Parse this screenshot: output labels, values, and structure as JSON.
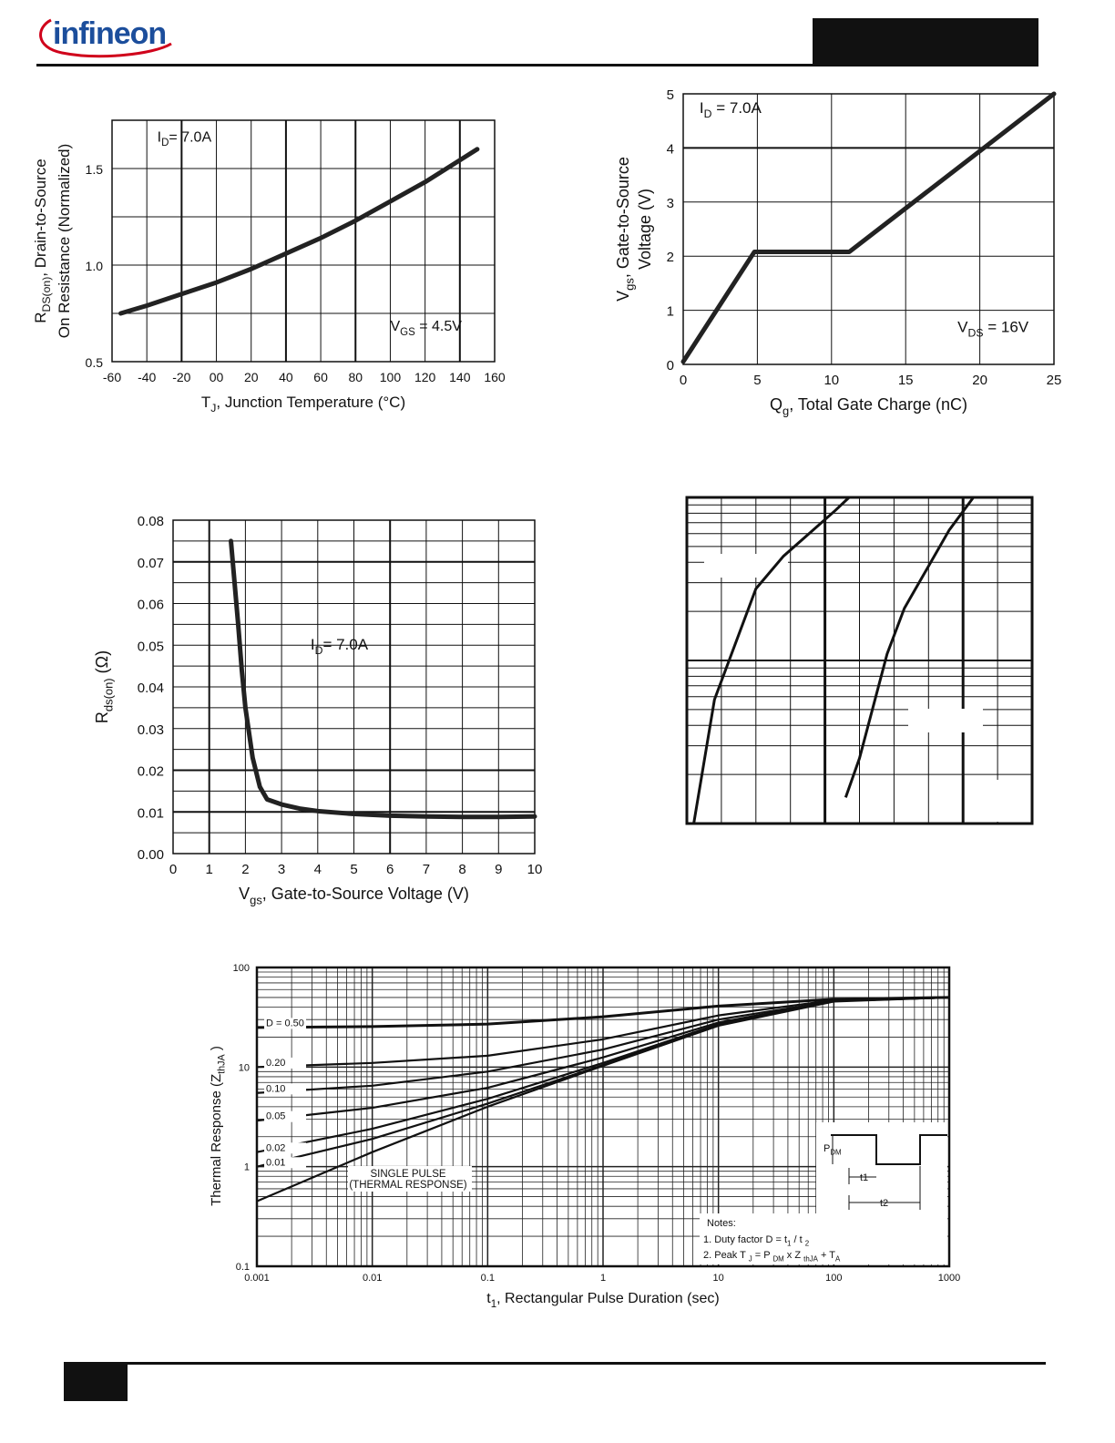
{
  "header": {
    "logo_text": "infineon",
    "brand_color": "#1c4e9c"
  },
  "chart_data": [
    {
      "id": "rds_vs_tj",
      "type": "line",
      "title": "",
      "xlabel_parts": [
        "T",
        "J",
        ", Junction Temperature (°C)"
      ],
      "ylabel_line1_parts": [
        "R",
        "DS(on)",
        ", Drain-to-Source"
      ],
      "ylabel_line2": "On Resistance (Normalized)",
      "xlim": [
        -60,
        160
      ],
      "ylim": [
        0.5,
        1.75
      ],
      "x_ticks": [
        "-60",
        "-40",
        "-20",
        "00",
        "20",
        "40",
        "60",
        "80",
        "100",
        "120",
        "140",
        "160"
      ],
      "y_ticks": [
        "0.5",
        "1.0",
        "1.5"
      ],
      "annotations": [
        {
          "parts": [
            "I",
            "D",
            "= 7.0A"
          ],
          "x": -34,
          "y": 1.64
        },
        {
          "parts": [
            "V",
            "GS",
            " = 4.5V"
          ],
          "x": 100,
          "y": 0.66
        }
      ],
      "grid": true,
      "series": [
        {
          "x": [
            -55,
            -40,
            -20,
            0,
            20,
            40,
            60,
            80,
            100,
            120,
            150
          ],
          "y": [
            0.75,
            0.79,
            0.85,
            0.91,
            0.98,
            1.06,
            1.14,
            1.23,
            1.33,
            1.43,
            1.6
          ]
        }
      ]
    },
    {
      "id": "vgs_vs_qg",
      "type": "line",
      "title": "",
      "xlabel_parts": [
        "Q",
        "g",
        ", Total Gate Charge (nC)"
      ],
      "ylabel_line1_parts": [
        "V",
        "gs",
        ", Gate-to-Source"
      ],
      "ylabel_line2": "Voltage (V)",
      "xlim": [
        0,
        25
      ],
      "ylim": [
        0,
        5
      ],
      "x_ticks": [
        "0",
        "5",
        "10",
        "15",
        "20",
        "25"
      ],
      "y_ticks": [
        "0",
        "1",
        "2",
        "3",
        "4",
        "5"
      ],
      "annotations": [
        {
          "parts": [
            "I",
            "D",
            " = 7.0A"
          ],
          "x": 1.1,
          "y": 4.65
        },
        {
          "parts": [
            "V",
            "DS",
            " = 16V"
          ],
          "x": 18.5,
          "y": 0.6
        }
      ],
      "grid": true,
      "series": [
        {
          "x": [
            0,
            4.8,
            11.2,
            25
          ],
          "y": [
            0.05,
            2.08,
            2.08,
            5.0
          ]
        }
      ]
    },
    {
      "id": "rds_vs_vgs",
      "type": "line",
      "title": "",
      "xlabel_parts": [
        "V",
        "gs",
        ", Gate-to-Source Voltage (V)"
      ],
      "ylabel_line1_parts": [
        "R",
        "ds(on)",
        "  (Ω)"
      ],
      "ylabel_line2": "",
      "xlim": [
        0,
        10
      ],
      "ylim": [
        0,
        0.08
      ],
      "x_ticks": [
        "0",
        "1",
        "2",
        "3",
        "4",
        "5",
        "6",
        "7",
        "8",
        "9",
        "10"
      ],
      "y_ticks": [
        "0.00",
        "0.01",
        "0.02",
        "0.03",
        "0.04",
        "0.05",
        "0.06",
        "0.07",
        "0.08"
      ],
      "annotations": [
        {
          "parts": [
            "I",
            "D",
            "= 7.0A"
          ],
          "x": 3.8,
          "y": 0.049
        }
      ],
      "grid": true,
      "series": [
        {
          "x": [
            1.6,
            1.7,
            1.8,
            1.9,
            2.0,
            2.2,
            2.4,
            2.6,
            3.0,
            3.5,
            4.0,
            5.0,
            6.0,
            7.0,
            8.0,
            9.0,
            10.0
          ],
          "y": [
            0.075,
            0.065,
            0.055,
            0.044,
            0.035,
            0.023,
            0.016,
            0.013,
            0.0118,
            0.0108,
            0.0102,
            0.0095,
            0.0091,
            0.0089,
            0.0088,
            0.0088,
            0.0089
          ]
        }
      ]
    },
    {
      "id": "unlabeled_log_plot",
      "type": "line",
      "title": "",
      "grid": true,
      "series": [
        {
          "x": [
            0.02,
            0.08,
            0.2,
            0.28,
            0.43,
            0.47
          ],
          "y": [
            0.0,
            0.38,
            0.72,
            0.82,
            0.96,
            1.0
          ]
        },
        {
          "x": [
            0.46,
            0.5,
            0.58,
            0.63,
            0.76,
            0.83
          ],
          "y": [
            0.08,
            0.2,
            0.52,
            0.66,
            0.9,
            1.0
          ]
        }
      ]
    },
    {
      "id": "thermal_response",
      "type": "line",
      "title": "",
      "xlabel_parts": [
        "t",
        "1",
        ", Rectangular Pulse Duration (sec)"
      ],
      "ylabel_parts": [
        "Thermal Response (Z",
        "thJA",
        " )"
      ],
      "x_scale": "log",
      "y_scale": "log",
      "xlim": [
        0.001,
        1000
      ],
      "ylim": [
        0.1,
        100
      ],
      "x_ticks": [
        "0.001",
        "0.01",
        "0.1",
        "1",
        "10",
        "100",
        "1000"
      ],
      "y_ticks": [
        "0.1",
        "1",
        "10",
        "100"
      ],
      "grid": true,
      "series_labels": [
        "D = 0.50",
        "0.20",
        "0.10",
        "0.05",
        "0.02",
        "0.01"
      ],
      "single_pulse_label": [
        "SINGLE PULSE",
        "(THERMAL RESPONSE)"
      ],
      "series": [
        {
          "name": "D = 0.50",
          "x": [
            0.001,
            0.01,
            0.1,
            1,
            10,
            100,
            1000
          ],
          "y": [
            25,
            25.5,
            27,
            32,
            41,
            48,
            50
          ]
        },
        {
          "name": "0.20",
          "x": [
            0.001,
            0.01,
            0.1,
            1,
            10,
            100,
            1000
          ],
          "y": [
            10,
            11,
            13,
            19,
            33,
            47,
            50
          ]
        },
        {
          "name": "0.10",
          "x": [
            0.001,
            0.01,
            0.1,
            1,
            10,
            100,
            1000
          ],
          "y": [
            5.5,
            6.5,
            9,
            15,
            30,
            46,
            50
          ]
        },
        {
          "name": "0.05",
          "x": [
            0.001,
            0.01,
            0.1,
            1,
            10,
            100,
            1000
          ],
          "y": [
            2.9,
            3.9,
            6.2,
            12.5,
            28,
            46,
            50
          ]
        },
        {
          "name": "0.02",
          "x": [
            0.001,
            0.01,
            0.1,
            1,
            10,
            100,
            1000
          ],
          "y": [
            1.4,
            2.4,
            4.8,
            11,
            27,
            46,
            50
          ]
        },
        {
          "name": "0.01",
          "x": [
            0.001,
            0.01,
            0.1,
            1,
            10,
            100,
            1000
          ],
          "y": [
            1.0,
            1.9,
            4.3,
            10.5,
            26.5,
            46,
            50
          ]
        },
        {
          "name": "SINGLE PULSE",
          "x": [
            0.001,
            0.01,
            0.1,
            1,
            10,
            100,
            1000
          ],
          "y": [
            0.45,
            1.4,
            4.0,
            10.3,
            26,
            45.5,
            50
          ]
        }
      ],
      "inset": {
        "pdm_parts": [
          "P",
          "DM"
        ],
        "t1": "t1",
        "t2": "t2"
      },
      "notes": {
        "title": "Notes:",
        "line1_parts": [
          "1. Duty factor D =   t",
          "1",
          " / t ",
          "2"
        ],
        "line2_parts": [
          "2. Peak T ",
          "J",
          " = P ",
          "DM",
          " x  Z ",
          "thJA",
          "  + T",
          "A"
        ]
      }
    }
  ]
}
